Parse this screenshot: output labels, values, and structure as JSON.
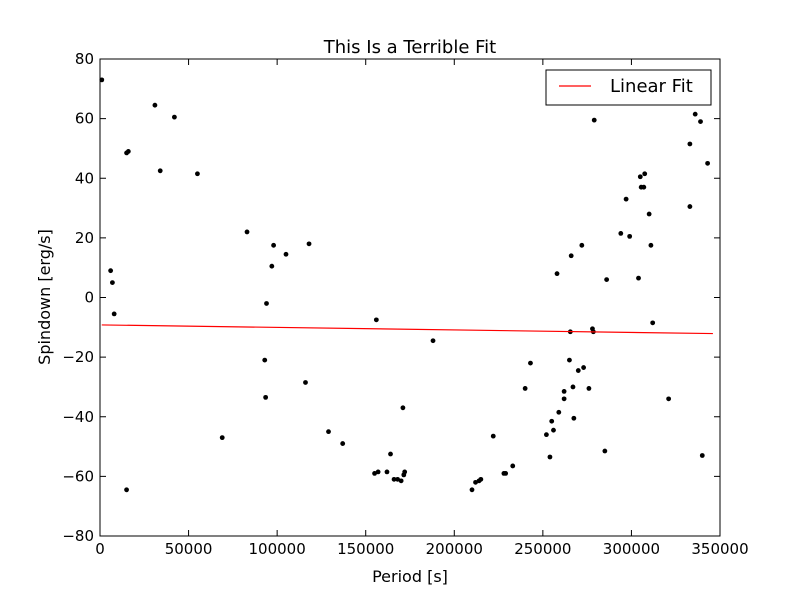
{
  "chart_data": {
    "type": "scatter",
    "title": "This Is a Terrible Fit",
    "xlabel": "Period [s]",
    "ylabel": "Spindown [erg/s]",
    "xlim": [
      0,
      350000
    ],
    "ylim": [
      -80,
      80
    ],
    "x_ticks": [
      0,
      50000,
      100000,
      150000,
      200000,
      250000,
      300000,
      350000
    ],
    "x_tick_labels": [
      "0",
      "50000",
      "100000",
      "150000",
      "200000",
      "250000",
      "300000",
      "350000"
    ],
    "y_ticks": [
      -80,
      -60,
      -40,
      -20,
      0,
      20,
      40,
      60,
      80
    ],
    "y_tick_labels": [
      "−80",
      "−60",
      "−40",
      "−20",
      "0",
      "20",
      "40",
      "60",
      "80"
    ],
    "grid": false,
    "legend_position": "top-right",
    "points_color": "#000000",
    "fit_color": "#ff0000",
    "series": [
      {
        "kind": "scatter",
        "points": [
          [
            1000,
            73
          ],
          [
            6000,
            9
          ],
          [
            7000,
            5
          ],
          [
            8000,
            -5.5
          ],
          [
            15000,
            -64.5
          ],
          [
            15000,
            48.5
          ],
          [
            16000,
            49
          ],
          [
            31000,
            64.5
          ],
          [
            34000,
            42.5
          ],
          [
            42000,
            60.5
          ],
          [
            55000,
            41.5
          ],
          [
            69000,
            -47
          ],
          [
            83000,
            22
          ],
          [
            93000,
            -21
          ],
          [
            93500,
            -33.5
          ],
          [
            94000,
            -2
          ],
          [
            97000,
            10.5
          ],
          [
            98000,
            17.5
          ],
          [
            105000,
            14.5
          ],
          [
            116000,
            -28.5
          ],
          [
            118000,
            18
          ],
          [
            129000,
            -45
          ],
          [
            137000,
            -49
          ],
          [
            155000,
            -59
          ],
          [
            156000,
            -7.5
          ],
          [
            157000,
            -58.5
          ],
          [
            162000,
            -58.5
          ],
          [
            164000,
            -52.5
          ],
          [
            166000,
            -61
          ],
          [
            168000,
            -61
          ],
          [
            170000,
            -61.5
          ],
          [
            171000,
            -37
          ],
          [
            171500,
            -59.5
          ],
          [
            172000,
            -58.5
          ],
          [
            188000,
            -14.5
          ],
          [
            210000,
            -64.5
          ],
          [
            212000,
            -62
          ],
          [
            214000,
            -61.5
          ],
          [
            215000,
            -61
          ],
          [
            222000,
            -46.5
          ],
          [
            228000,
            -59
          ],
          [
            229000,
            -59
          ],
          [
            233000,
            -56.5
          ],
          [
            240000,
            -30.5
          ],
          [
            243000,
            -22
          ],
          [
            252000,
            -46
          ],
          [
            254000,
            -53.5
          ],
          [
            255000,
            -41.5
          ],
          [
            256000,
            -44.5
          ],
          [
            258000,
            8
          ],
          [
            259000,
            -38.5
          ],
          [
            262000,
            -31.5
          ],
          [
            262000,
            -34
          ],
          [
            265000,
            -21
          ],
          [
            265500,
            -11.5
          ],
          [
            266000,
            14
          ],
          [
            267000,
            -30
          ],
          [
            267500,
            -40.5
          ],
          [
            270000,
            -24.5
          ],
          [
            272000,
            17.5
          ],
          [
            273000,
            -23.5
          ],
          [
            276000,
            -30.5
          ],
          [
            278000,
            -10.5
          ],
          [
            278500,
            -11.5
          ],
          [
            279000,
            59.5
          ],
          [
            285000,
            -51.5
          ],
          [
            286000,
            6
          ],
          [
            294000,
            21.5
          ],
          [
            297000,
            33
          ],
          [
            299000,
            20.5
          ],
          [
            304000,
            6.5
          ],
          [
            305000,
            40.5
          ],
          [
            305500,
            37
          ],
          [
            307000,
            37
          ],
          [
            307500,
            41.5
          ],
          [
            310000,
            28
          ],
          [
            311000,
            17.5
          ],
          [
            312000,
            -8.5
          ],
          [
            321000,
            -34
          ],
          [
            333000,
            51.5
          ],
          [
            333000,
            30.5
          ],
          [
            336000,
            61.5
          ],
          [
            339000,
            59
          ],
          [
            343000,
            45
          ],
          [
            340000,
            -53
          ]
        ]
      },
      {
        "kind": "line",
        "name": "Linear Fit",
        "points": [
          [
            1000,
            -9.2
          ],
          [
            346000,
            -12.1
          ]
        ]
      }
    ]
  }
}
